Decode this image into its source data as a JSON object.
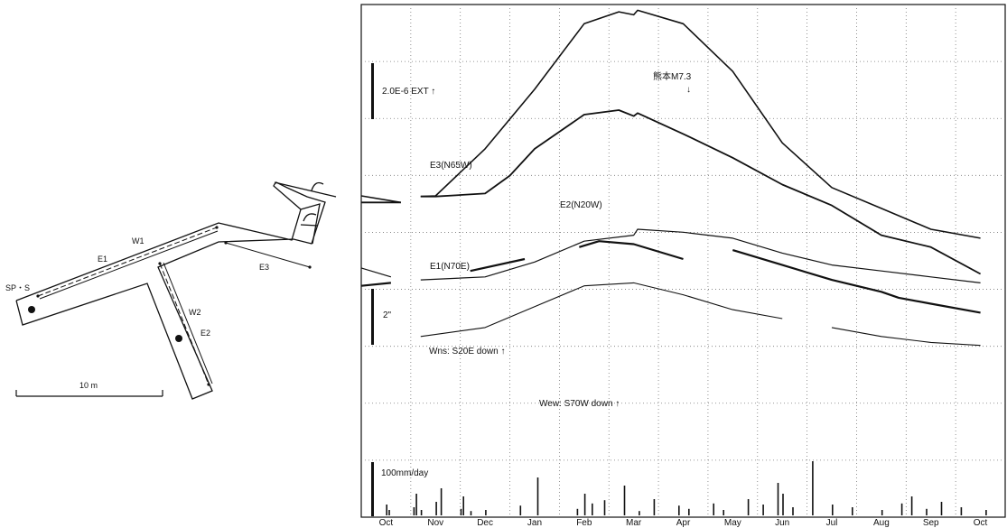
{
  "diagram": {
    "labels": {
      "sps": "SP・S",
      "w1": "W1",
      "e1": "E1",
      "w2": "W2",
      "e2": "E2",
      "e3": "E3",
      "scale": "10 m"
    }
  },
  "chart_data": {
    "type": "line",
    "title": "",
    "xlabel": "",
    "ylabel": "",
    "months": [
      "Oct",
      "Nov",
      "Dec",
      "Jan",
      "Feb",
      "Mar",
      "Apr",
      "May",
      "Jun",
      "Jul",
      "Aug",
      "Sep",
      "Oct"
    ],
    "grid": true,
    "scale_bars": [
      {
        "label": "2.0E-6  EXT ↑"
      },
      {
        "label": "2\""
      },
      {
        "label": "100mm/day"
      }
    ],
    "annotations": [
      {
        "label": "熊本M7.3",
        "arrow": "↓"
      }
    ],
    "series_labels": [
      {
        "series": "E3",
        "text": "E3(N65W)"
      },
      {
        "series": "E2",
        "text": "E2(N20W)"
      },
      {
        "series": "E1",
        "text": "E1(N70E)"
      },
      {
        "series": "Wns",
        "text": "Wns: S20E down ↑"
      },
      {
        "series": "Wew",
        "text": "Wew: S70W down ↑"
      }
    ],
    "series": [
      {
        "name": "E3",
        "x": [
          0,
          0.8,
          1.2,
          1.5,
          2.5,
          3.5,
          4.5,
          5.2,
          5.5,
          5.58,
          6.5,
          7.5,
          8.5,
          9.5,
          10.5,
          11.5,
          12.5
        ],
        "y": [
          3.12,
          2.9,
          3.1,
          3.12,
          4.7,
          6.7,
          8.9,
          9.3,
          9.2,
          9.35,
          8.9,
          7.3,
          4.9,
          3.4,
          2.7,
          2.0,
          1.7
        ]
      },
      {
        "name": "E2",
        "x": [
          0,
          0.8,
          1.2,
          1.5,
          2.5,
          3.0,
          3.5,
          4.5,
          5.2,
          5.5,
          5.58,
          6.5,
          7.5,
          8.5,
          9.5,
          10.5,
          11.5,
          12.5
        ],
        "y": [
          2.9,
          2.9,
          3.1,
          3.1,
          3.2,
          3.8,
          4.7,
          5.85,
          6.0,
          5.8,
          5.9,
          5.2,
          4.4,
          3.5,
          2.8,
          1.8,
          1.4,
          0.5
        ]
      },
      {
        "name": "E1",
        "x": [
          0,
          0.6,
          1.2,
          2.5,
          3.5,
          4.5,
          5.5,
          5.58,
          6.5,
          7.5,
          8.5,
          9.5,
          10.5,
          11.5,
          12.5
        ],
        "y": [
          0.7,
          0.4,
          0.3,
          0.4,
          0.9,
          1.6,
          1.8,
          2.0,
          1.9,
          1.7,
          1.2,
          0.8,
          0.6,
          0.4,
          0.2
        ]
      },
      {
        "name": "Wns",
        "x": [
          0,
          0.6,
          2.2,
          3.3,
          4.4,
          4.8,
          5.5,
          6.5,
          7.5,
          8.5,
          9.5,
          10.5,
          10.85,
          11.5,
          12.5
        ],
        "y": [
          0.1,
          0.2,
          0.6,
          1.0,
          1.4,
          1.6,
          1.5,
          1.0,
          1.3,
          0.8,
          0.3,
          -0.1,
          -0.3,
          -0.5,
          -0.8
        ]
      },
      {
        "name": "Wew",
        "x": [
          1.2,
          2.5,
          3.5,
          4.5,
          5.5,
          6.5,
          7.5,
          8.5,
          9.5,
          10.5,
          11.5,
          12.5
        ],
        "y": [
          -1.6,
          -1.3,
          -0.6,
          0.1,
          0.2,
          -0.2,
          -0.7,
          -1.0,
          -1.3,
          -1.6,
          -1.8,
          -1.9
        ]
      }
    ],
    "precipitation_mm_day": {
      "x": [
        0.5,
        0.55,
        1.05,
        1.1,
        1.2,
        1.5,
        1.6,
        2.0,
        2.05,
        2.2,
        2.5,
        3.2,
        3.55,
        4.35,
        4.5,
        4.65,
        4.9,
        5.3,
        5.6,
        5.9,
        6.4,
        6.6,
        7.1,
        7.3,
        7.8,
        8.1,
        8.4,
        8.5,
        8.7,
        9.1,
        9.5,
        9.9,
        10.5,
        10.9,
        11.1,
        11.4,
        11.7,
        12.1,
        12.6
      ],
      "values": [
        20,
        10,
        15,
        40,
        10,
        25,
        50,
        12,
        35,
        8,
        10,
        18,
        70,
        12,
        40,
        22,
        28,
        55,
        8,
        30,
        18,
        12,
        22,
        10,
        30,
        20,
        60,
        40,
        15,
        100,
        20,
        15,
        10,
        22,
        35,
        12,
        25,
        15,
        10
      ]
    }
  }
}
